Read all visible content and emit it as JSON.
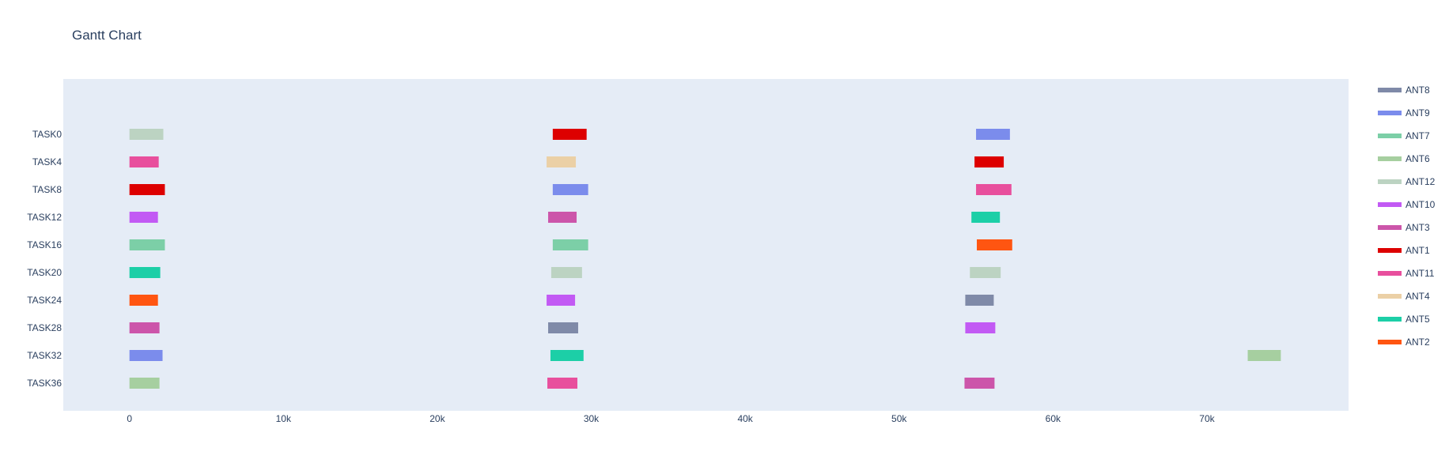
{
  "chart_data": {
    "type": "bar",
    "orientation": "horizontal-gantt",
    "title": "Gantt Chart",
    "xlabel": "",
    "ylabel": "",
    "xlim": [
      -4300,
      79200
    ],
    "x_ticks": [
      0,
      10000,
      20000,
      30000,
      40000,
      50000,
      60000,
      70000
    ],
    "x_tick_labels": [
      "0",
      "10k",
      "20k",
      "30k",
      "40k",
      "50k",
      "60k",
      "70k"
    ],
    "categories": [
      "TASK0",
      "TASK4",
      "TASK8",
      "TASK12",
      "TASK16",
      "TASK20",
      "TASK24",
      "TASK28",
      "TASK32",
      "TASK36"
    ],
    "grid": false,
    "legend_position": "right",
    "legend": [
      {
        "name": "ANT8",
        "color": "#7f8aa8"
      },
      {
        "name": "ANT9",
        "color": "#7b8cec"
      },
      {
        "name": "ANT7",
        "color": "#7ccfa7"
      },
      {
        "name": "ANT6",
        "color": "#a6cfa0"
      },
      {
        "name": "ANT12",
        "color": "#bcd3c2"
      },
      {
        "name": "ANT10",
        "color": "#c25af4"
      },
      {
        "name": "ANT3",
        "color": "#cc55aa"
      },
      {
        "name": "ANT1",
        "color": "#dd0000"
      },
      {
        "name": "ANT11",
        "color": "#e84f9d"
      },
      {
        "name": "ANT4",
        "color": "#ebd0a6"
      },
      {
        "name": "ANT5",
        "color": "#1ccfa7"
      },
      {
        "name": "ANT2",
        "color": "#ff5511"
      }
    ],
    "bars": [
      {
        "task": "TASK0",
        "series": "ANT12",
        "start": 0,
        "end": 2200
      },
      {
        "task": "TASK0",
        "series": "ANT1",
        "start": 27500,
        "end": 29700
      },
      {
        "task": "TASK0",
        "series": "ANT9",
        "start": 55000,
        "end": 57200
      },
      {
        "task": "TASK4",
        "series": "ANT11",
        "start": 0,
        "end": 1900
      },
      {
        "task": "TASK4",
        "series": "ANT4",
        "start": 27100,
        "end": 29000
      },
      {
        "task": "TASK4",
        "series": "ANT1",
        "start": 54900,
        "end": 56800
      },
      {
        "task": "TASK8",
        "series": "ANT1",
        "start": 0,
        "end": 2300
      },
      {
        "task": "TASK8",
        "series": "ANT9",
        "start": 27500,
        "end": 29800
      },
      {
        "task": "TASK8",
        "series": "ANT11",
        "start": 55000,
        "end": 57300
      },
      {
        "task": "TASK12",
        "series": "ANT10",
        "start": 0,
        "end": 1850
      },
      {
        "task": "TASK12",
        "series": "ANT3",
        "start": 27200,
        "end": 29050
      },
      {
        "task": "TASK12",
        "series": "ANT5",
        "start": 54700,
        "end": 56550
      },
      {
        "task": "TASK16",
        "series": "ANT7",
        "start": 0,
        "end": 2300
      },
      {
        "task": "TASK16",
        "series": "ANT7",
        "start": 27500,
        "end": 29800
      },
      {
        "task": "TASK16",
        "series": "ANT2",
        "start": 55050,
        "end": 57350
      },
      {
        "task": "TASK20",
        "series": "ANT5",
        "start": 0,
        "end": 2000
      },
      {
        "task": "TASK20",
        "series": "ANT12",
        "start": 27400,
        "end": 29400
      },
      {
        "task": "TASK20",
        "series": "ANT12",
        "start": 54600,
        "end": 56600
      },
      {
        "task": "TASK24",
        "series": "ANT2",
        "start": 0,
        "end": 1850
      },
      {
        "task": "TASK24",
        "series": "ANT10",
        "start": 27100,
        "end": 28950
      },
      {
        "task": "TASK24",
        "series": "ANT8",
        "start": 54300,
        "end": 56150
      },
      {
        "task": "TASK28",
        "series": "ANT3",
        "start": 0,
        "end": 1950
      },
      {
        "task": "TASK28",
        "series": "ANT8",
        "start": 27200,
        "end": 29150
      },
      {
        "task": "TASK28",
        "series": "ANT10",
        "start": 54300,
        "end": 56250
      },
      {
        "task": "TASK32",
        "series": "ANT9",
        "start": 0,
        "end": 2150
      },
      {
        "task": "TASK32",
        "series": "ANT5",
        "start": 27350,
        "end": 29500
      },
      {
        "task": "TASK32",
        "series": "ANT6",
        "start": 72650,
        "end": 74800
      },
      {
        "task": "TASK36",
        "series": "ANT6",
        "start": 0,
        "end": 1950
      },
      {
        "task": "TASK36",
        "series": "ANT11",
        "start": 27150,
        "end": 29100
      },
      {
        "task": "TASK36",
        "series": "ANT3",
        "start": 54250,
        "end": 56200
      }
    ]
  }
}
